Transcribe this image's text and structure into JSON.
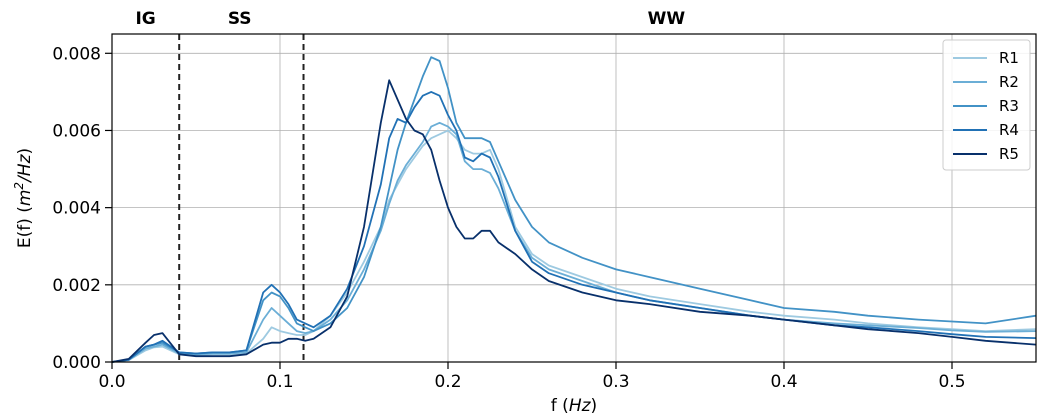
{
  "chart_data": {
    "type": "line",
    "xlabel_prefix": "f (",
    "xlabel_unit": "Hz",
    "xlabel_suffix": ")",
    "ylabel_prefix": "E(f) (",
    "ylabel_unit_m": "m",
    "ylabel_unit_exp": "2",
    "ylabel_unit_rest": "/Hz",
    "ylabel_suffix": ")",
    "xlim": [
      0.0,
      0.55
    ],
    "ylim": [
      0.0,
      0.0085
    ],
    "x_ticks": [
      0.0,
      0.1,
      0.2,
      0.3,
      0.4,
      0.5
    ],
    "x_tick_labels": [
      "0.0",
      "0.1",
      "0.2",
      "0.3",
      "0.4",
      "0.5"
    ],
    "y_ticks": [
      0.0,
      0.002,
      0.004,
      0.006,
      0.008
    ],
    "y_tick_labels": [
      "0.000",
      "0.002",
      "0.004",
      "0.006",
      "0.008"
    ],
    "grid": true,
    "legend_position": "top-right",
    "vlines": [
      0.04,
      0.114
    ],
    "regions": [
      {
        "label": "IG",
        "x": 0.02
      },
      {
        "label": "SS",
        "x": 0.076
      },
      {
        "label": "WW",
        "x": 0.33
      }
    ],
    "series": [
      {
        "name": "R1",
        "color": "#9ecae1",
        "x": [
          0.0,
          0.01,
          0.02,
          0.025,
          0.03,
          0.04,
          0.05,
          0.06,
          0.07,
          0.08,
          0.09,
          0.095,
          0.1,
          0.105,
          0.11,
          0.115,
          0.12,
          0.13,
          0.14,
          0.15,
          0.16,
          0.165,
          0.17,
          0.175,
          0.18,
          0.185,
          0.19,
          0.195,
          0.2,
          0.205,
          0.21,
          0.215,
          0.22,
          0.225,
          0.23,
          0.24,
          0.25,
          0.26,
          0.28,
          0.3,
          0.32,
          0.35,
          0.38,
          0.4,
          0.43,
          0.45,
          0.48,
          0.5,
          0.52,
          0.55
        ],
        "y": [
          0.0,
          5e-05,
          0.0003,
          0.00038,
          0.0004,
          0.0002,
          0.00018,
          0.0002,
          0.0002,
          0.00022,
          0.0006,
          0.0009,
          0.0008,
          0.00075,
          0.0007,
          0.0007,
          0.0008,
          0.0012,
          0.0018,
          0.0026,
          0.0035,
          0.0042,
          0.0046,
          0.005,
          0.0053,
          0.0056,
          0.0058,
          0.0059,
          0.006,
          0.0058,
          0.0055,
          0.0054,
          0.0054,
          0.0055,
          0.005,
          0.0035,
          0.0028,
          0.0025,
          0.0022,
          0.0019,
          0.0017,
          0.0015,
          0.0013,
          0.0012,
          0.0011,
          0.001,
          0.0009,
          0.00085,
          0.0008,
          0.00085
        ]
      },
      {
        "name": "R2",
        "color": "#6baed6",
        "x": [
          0.0,
          0.01,
          0.02,
          0.025,
          0.03,
          0.04,
          0.05,
          0.06,
          0.07,
          0.08,
          0.09,
          0.095,
          0.1,
          0.105,
          0.11,
          0.115,
          0.12,
          0.13,
          0.14,
          0.15,
          0.16,
          0.165,
          0.17,
          0.175,
          0.18,
          0.185,
          0.19,
          0.195,
          0.2,
          0.205,
          0.21,
          0.215,
          0.22,
          0.225,
          0.23,
          0.24,
          0.25,
          0.26,
          0.28,
          0.3,
          0.32,
          0.35,
          0.38,
          0.4,
          0.43,
          0.45,
          0.48,
          0.5,
          0.52,
          0.55
        ],
        "y": [
          0.0,
          6e-05,
          0.00035,
          0.0004,
          0.00045,
          0.00022,
          0.0002,
          0.00022,
          0.00022,
          0.00025,
          0.0011,
          0.0014,
          0.0012,
          0.001,
          0.0008,
          0.00075,
          0.0008,
          0.0011,
          0.0016,
          0.0024,
          0.0034,
          0.0041,
          0.0047,
          0.0051,
          0.0054,
          0.0057,
          0.0061,
          0.0062,
          0.0061,
          0.0059,
          0.0052,
          0.005,
          0.005,
          0.0049,
          0.0045,
          0.0034,
          0.0027,
          0.0024,
          0.0021,
          0.0018,
          0.0016,
          0.0014,
          0.0012,
          0.0011,
          0.001,
          0.00095,
          0.00088,
          0.00082,
          0.00078,
          0.0008
        ]
      },
      {
        "name": "R3",
        "color": "#4292c6",
        "x": [
          0.0,
          0.01,
          0.02,
          0.025,
          0.03,
          0.04,
          0.05,
          0.06,
          0.07,
          0.08,
          0.09,
          0.095,
          0.1,
          0.105,
          0.11,
          0.115,
          0.12,
          0.13,
          0.14,
          0.15,
          0.16,
          0.165,
          0.17,
          0.175,
          0.18,
          0.185,
          0.19,
          0.195,
          0.2,
          0.205,
          0.21,
          0.215,
          0.22,
          0.225,
          0.23,
          0.24,
          0.25,
          0.26,
          0.28,
          0.3,
          0.32,
          0.35,
          0.38,
          0.4,
          0.43,
          0.45,
          0.48,
          0.5,
          0.52,
          0.55
        ],
        "y": [
          0.0,
          6e-05,
          0.0004,
          0.00045,
          0.0005,
          0.00025,
          0.00022,
          0.00025,
          0.00025,
          0.0003,
          0.0016,
          0.0018,
          0.0017,
          0.0014,
          0.001,
          0.0009,
          0.0008,
          0.001,
          0.0014,
          0.0022,
          0.0035,
          0.0045,
          0.0055,
          0.0062,
          0.0068,
          0.0074,
          0.0079,
          0.0078,
          0.0071,
          0.0062,
          0.0058,
          0.0058,
          0.0058,
          0.0057,
          0.0052,
          0.0042,
          0.0035,
          0.0031,
          0.0027,
          0.0024,
          0.0022,
          0.0019,
          0.0016,
          0.0014,
          0.0013,
          0.0012,
          0.0011,
          0.00105,
          0.001,
          0.0012
        ]
      },
      {
        "name": "R4",
        "color": "#2171b5",
        "x": [
          0.0,
          0.01,
          0.02,
          0.025,
          0.03,
          0.04,
          0.05,
          0.06,
          0.07,
          0.08,
          0.09,
          0.095,
          0.1,
          0.105,
          0.11,
          0.115,
          0.12,
          0.13,
          0.14,
          0.15,
          0.16,
          0.165,
          0.17,
          0.175,
          0.18,
          0.185,
          0.19,
          0.195,
          0.2,
          0.205,
          0.21,
          0.215,
          0.22,
          0.225,
          0.23,
          0.24,
          0.25,
          0.26,
          0.28,
          0.3,
          0.32,
          0.35,
          0.38,
          0.4,
          0.43,
          0.45,
          0.48,
          0.5,
          0.52,
          0.55
        ],
        "y": [
          0.0,
          6e-05,
          0.0004,
          0.00045,
          0.00055,
          0.00025,
          0.00022,
          0.00025,
          0.00025,
          0.0003,
          0.0018,
          0.002,
          0.0018,
          0.0015,
          0.0011,
          0.001,
          0.0009,
          0.0012,
          0.0019,
          0.003,
          0.0046,
          0.0058,
          0.0063,
          0.0062,
          0.0066,
          0.0069,
          0.007,
          0.0069,
          0.0064,
          0.006,
          0.0053,
          0.0052,
          0.0054,
          0.0053,
          0.0048,
          0.0034,
          0.0026,
          0.0023,
          0.002,
          0.0018,
          0.0016,
          0.0014,
          0.0012,
          0.0011,
          0.00095,
          0.0009,
          0.0008,
          0.00072,
          0.00065,
          0.00062
        ]
      },
      {
        "name": "R5",
        "color": "#08306b",
        "x": [
          0.0,
          0.01,
          0.02,
          0.025,
          0.03,
          0.04,
          0.05,
          0.06,
          0.07,
          0.08,
          0.09,
          0.095,
          0.1,
          0.105,
          0.11,
          0.115,
          0.12,
          0.13,
          0.14,
          0.15,
          0.16,
          0.165,
          0.17,
          0.175,
          0.18,
          0.185,
          0.19,
          0.195,
          0.2,
          0.205,
          0.21,
          0.215,
          0.22,
          0.225,
          0.23,
          0.24,
          0.25,
          0.26,
          0.28,
          0.3,
          0.32,
          0.35,
          0.38,
          0.4,
          0.43,
          0.45,
          0.48,
          0.5,
          0.52,
          0.55
        ],
        "y": [
          0.0,
          8e-05,
          0.0005,
          0.0007,
          0.00075,
          0.0002,
          0.00015,
          0.00015,
          0.00015,
          0.0002,
          0.00045,
          0.0005,
          0.0005,
          0.0006,
          0.0006,
          0.00055,
          0.0006,
          0.0009,
          0.0017,
          0.0035,
          0.0062,
          0.0073,
          0.0068,
          0.0063,
          0.006,
          0.0059,
          0.0055,
          0.0047,
          0.004,
          0.0035,
          0.0032,
          0.0032,
          0.0034,
          0.0034,
          0.0031,
          0.0028,
          0.0024,
          0.0021,
          0.0018,
          0.0016,
          0.0015,
          0.0013,
          0.0012,
          0.0011,
          0.00095,
          0.00085,
          0.00075,
          0.00065,
          0.00055,
          0.00045
        ]
      }
    ]
  }
}
